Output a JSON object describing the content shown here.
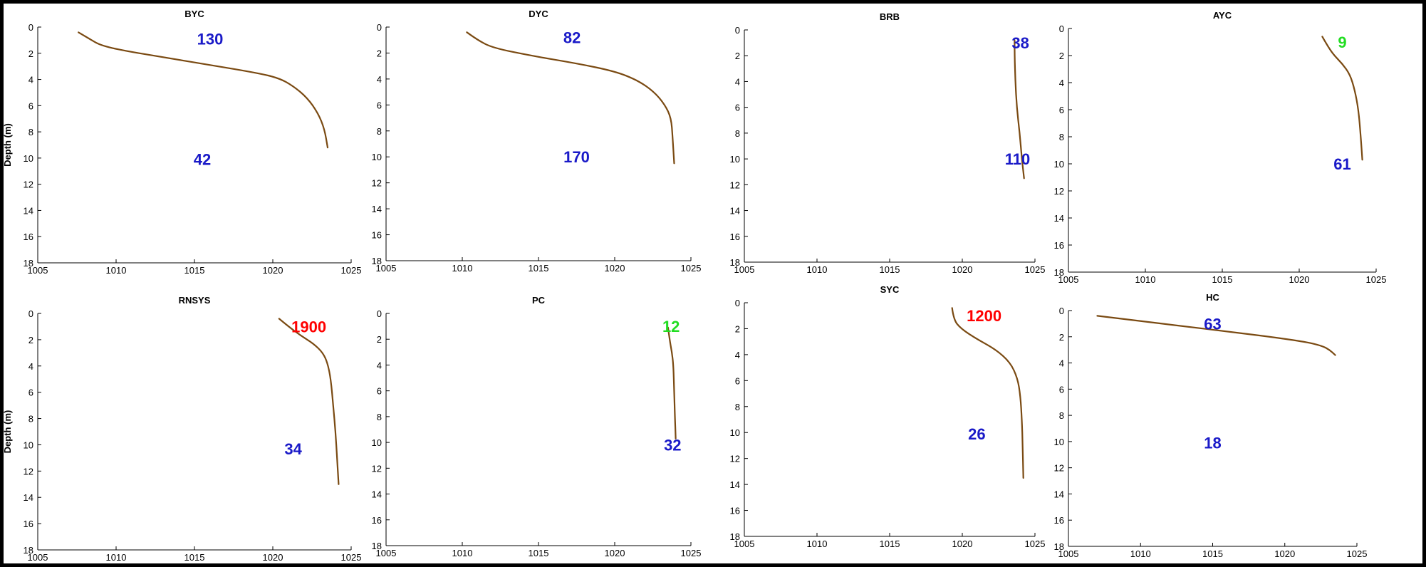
{
  "colors": {
    "line": "#7a4a12",
    "blue": "#1a1ac8",
    "red": "#ff0000",
    "green": "#22dd22"
  },
  "chart_data": [
    {
      "type": "line",
      "title": "BYC",
      "ylabel": "Depth (m)",
      "xlim": [
        1005,
        1025
      ],
      "ylim": [
        0,
        18
      ],
      "y_inverted": true,
      "x_ticks": [
        1005,
        1010,
        1015,
        1020,
        1025
      ],
      "y_ticks": [
        0,
        2,
        4,
        6,
        8,
        10,
        12,
        14,
        16,
        18
      ],
      "series": [
        {
          "points": [
            [
              1007.6,
              0.4
            ],
            [
              1008.3,
              0.9
            ],
            [
              1009.0,
              1.4
            ],
            [
              1010.5,
              1.8
            ],
            [
              1013.0,
              2.3
            ],
            [
              1016.0,
              2.9
            ],
            [
              1019.0,
              3.5
            ],
            [
              1020.4,
              3.9
            ],
            [
              1021.3,
              4.5
            ],
            [
              1022.2,
              5.4
            ],
            [
              1022.9,
              6.6
            ],
            [
              1023.3,
              7.8
            ],
            [
              1023.5,
              9.2
            ]
          ]
        }
      ],
      "annotations": [
        {
          "text": "130",
          "color": "blue",
          "x": 1016.0,
          "y": 0.9
        },
        {
          "text": "42",
          "color": "blue",
          "x": 1015.5,
          "y": 10.1
        }
      ]
    },
    {
      "type": "line",
      "title": "DYC",
      "ylabel": "",
      "xlim": [
        1005,
        1025
      ],
      "ylim": [
        0,
        18
      ],
      "y_inverted": true,
      "x_ticks": [
        1005,
        1010,
        1015,
        1020,
        1025
      ],
      "y_ticks": [
        0,
        2,
        4,
        6,
        8,
        10,
        12,
        14,
        16,
        18
      ],
      "series": [
        {
          "points": [
            [
              1010.3,
              0.4
            ],
            [
              1011.0,
              1.0
            ],
            [
              1012.0,
              1.6
            ],
            [
              1014.5,
              2.2
            ],
            [
              1017.5,
              2.8
            ],
            [
              1020.0,
              3.4
            ],
            [
              1021.5,
              4.1
            ],
            [
              1022.6,
              5.0
            ],
            [
              1023.3,
              6.0
            ],
            [
              1023.7,
              7.0
            ],
            [
              1023.8,
              8.5
            ],
            [
              1023.9,
              10.5
            ]
          ]
        }
      ],
      "annotations": [
        {
          "text": "82",
          "color": "blue",
          "x": 1017.2,
          "y": 0.8
        },
        {
          "text": "170",
          "color": "blue",
          "x": 1017.5,
          "y": 10.0
        }
      ]
    },
    {
      "type": "line",
      "title": "BRB",
      "ylabel": "",
      "xlim": [
        1005,
        1025
      ],
      "ylim": [
        0,
        18
      ],
      "y_inverted": true,
      "x_ticks": [
        1005,
        1010,
        1015,
        1020,
        1025
      ],
      "y_ticks": [
        0,
        2,
        4,
        6,
        8,
        10,
        12,
        14,
        16,
        18
      ],
      "series": [
        {
          "points": [
            [
              1023.6,
              0.8
            ],
            [
              1023.6,
              2.0
            ],
            [
              1023.65,
              4.0
            ],
            [
              1023.75,
              6.0
            ],
            [
              1023.95,
              8.0
            ],
            [
              1024.1,
              10.0
            ],
            [
              1024.25,
              11.5
            ]
          ]
        }
      ],
      "annotations": [
        {
          "text": "38",
          "color": "blue",
          "x": 1024.0,
          "y": 1.0
        },
        {
          "text": "110",
          "color": "blue",
          "x": 1023.8,
          "y": 10.0
        }
      ]
    },
    {
      "type": "line",
      "title": "AYC",
      "ylabel": "",
      "xlim": [
        1005,
        1025
      ],
      "ylim": [
        0,
        18
      ],
      "y_inverted": true,
      "x_ticks": [
        1005,
        1010,
        1015,
        1020,
        1025
      ],
      "y_ticks": [
        0,
        2,
        4,
        6,
        8,
        10,
        12,
        14,
        16,
        18
      ],
      "series": [
        {
          "points": [
            [
              1021.5,
              0.6
            ],
            [
              1021.8,
              1.2
            ],
            [
              1022.2,
              1.9
            ],
            [
              1022.8,
              2.6
            ],
            [
              1023.3,
              3.4
            ],
            [
              1023.6,
              4.5
            ],
            [
              1023.85,
              6.0
            ],
            [
              1024.0,
              8.0
            ],
            [
              1024.1,
              9.7
            ]
          ]
        }
      ],
      "annotations": [
        {
          "text": "9",
          "color": "green",
          "x": 1022.8,
          "y": 1.0
        },
        {
          "text": "61",
          "color": "blue",
          "x": 1022.8,
          "y": 10.0
        }
      ]
    },
    {
      "type": "line",
      "title": "RNSYS",
      "ylabel": "Depth (m)",
      "xlim": [
        1005,
        1025
      ],
      "ylim": [
        0,
        18
      ],
      "y_inverted": true,
      "x_ticks": [
        1005,
        1010,
        1015,
        1020,
        1025
      ],
      "y_ticks": [
        0,
        2,
        4,
        6,
        8,
        10,
        12,
        14,
        16,
        18
      ],
      "series": [
        {
          "points": [
            [
              1020.4,
              0.4
            ],
            [
              1021.0,
              1.0
            ],
            [
              1021.8,
              1.7
            ],
            [
              1022.6,
              2.3
            ],
            [
              1023.2,
              3.0
            ],
            [
              1023.5,
              3.8
            ],
            [
              1023.7,
              5.0
            ],
            [
              1023.85,
              7.0
            ],
            [
              1024.0,
              9.0
            ],
            [
              1024.1,
              11.0
            ],
            [
              1024.2,
              13.0
            ]
          ]
        }
      ],
      "annotations": [
        {
          "text": "1900",
          "color": "red",
          "x": 1022.3,
          "y": 1.0
        },
        {
          "text": "34",
          "color": "blue",
          "x": 1021.3,
          "y": 10.3
        }
      ]
    },
    {
      "type": "line",
      "title": "PC",
      "ylabel": "",
      "xlim": [
        1005,
        1025
      ],
      "ylim": [
        0,
        18
      ],
      "y_inverted": true,
      "x_ticks": [
        1005,
        1010,
        1015,
        1020,
        1025
      ],
      "y_ticks": [
        0,
        2,
        4,
        6,
        8,
        10,
        12,
        14,
        16,
        18
      ],
      "series": [
        {
          "points": [
            [
              1023.5,
              1.1
            ],
            [
              1023.6,
              2.0
            ],
            [
              1023.75,
              3.0
            ],
            [
              1023.85,
              4.0
            ],
            [
              1023.9,
              6.0
            ],
            [
              1023.95,
              8.0
            ],
            [
              1024.0,
              9.7
            ]
          ]
        }
      ],
      "annotations": [
        {
          "text": "12",
          "color": "green",
          "x": 1023.7,
          "y": 1.0
        },
        {
          "text": "32",
          "color": "blue",
          "x": 1023.8,
          "y": 10.2
        }
      ]
    },
    {
      "type": "line",
      "title": "SYC",
      "ylabel": "",
      "xlim": [
        1005,
        1025
      ],
      "ylim": [
        0,
        18
      ],
      "y_inverted": true,
      "x_ticks": [
        1005,
        1010,
        1015,
        1020,
        1025
      ],
      "y_ticks": [
        0,
        2,
        4,
        6,
        8,
        10,
        12,
        14,
        16,
        18
      ],
      "series": [
        {
          "points": [
            [
              1019.3,
              0.4
            ],
            [
              1019.4,
              1.3
            ],
            [
              1019.9,
              2.0
            ],
            [
              1021.0,
              2.8
            ],
            [
              1022.3,
              3.6
            ],
            [
              1023.3,
              4.6
            ],
            [
              1023.8,
              5.8
            ],
            [
              1024.0,
              7.2
            ],
            [
              1024.1,
              9.0
            ],
            [
              1024.15,
              11.0
            ],
            [
              1024.2,
              13.5
            ]
          ]
        }
      ],
      "annotations": [
        {
          "text": "1200",
          "color": "red",
          "x": 1021.5,
          "y": 1.0
        },
        {
          "text": "26",
          "color": "blue",
          "x": 1021.0,
          "y": 10.1
        }
      ]
    },
    {
      "type": "line",
      "title": "HC",
      "ylabel": "",
      "xlim": [
        1005,
        1025
      ],
      "ylim": [
        0,
        18
      ],
      "y_inverted": true,
      "x_ticks": [
        1005,
        1010,
        1015,
        1020,
        1025
      ],
      "y_ticks": [
        0,
        2,
        4,
        6,
        8,
        10,
        12,
        14,
        16,
        18
      ],
      "series": [
        {
          "points": [
            [
              1007.0,
              0.4
            ],
            [
              1010.0,
              0.8
            ],
            [
              1013.0,
              1.2
            ],
            [
              1016.0,
              1.6
            ],
            [
              1019.0,
              2.0
            ],
            [
              1021.5,
              2.4
            ],
            [
              1022.6,
              2.7
            ],
            [
              1023.1,
              3.0
            ],
            [
              1023.5,
              3.4
            ]
          ]
        }
      ],
      "annotations": [
        {
          "text": "63",
          "color": "blue",
          "x": 1015.0,
          "y": 1.0
        },
        {
          "text": "18",
          "color": "blue",
          "x": 1015.0,
          "y": 10.1
        }
      ]
    }
  ]
}
